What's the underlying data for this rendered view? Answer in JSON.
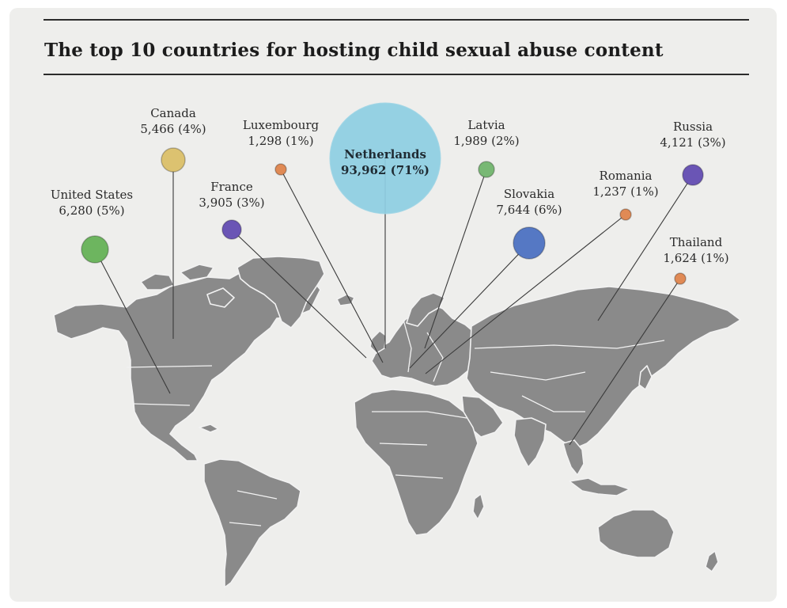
{
  "title": "The top 10 countries for hosting child sexual abuse content",
  "colors": {
    "background": "#eeeeec",
    "land": "#8a8a8a",
    "border": "#f2f2f2",
    "leader": "#3a3a3a"
  },
  "countries": [
    {
      "id": "united-states",
      "name": "United States",
      "value": "6,280 (5%)",
      "count": 6280,
      "percent": 5,
      "color": "#6db55f"
    },
    {
      "id": "canada",
      "name": "Canada",
      "value": "5,466 (4%)",
      "count": 5466,
      "percent": 4,
      "color": "#dcc270"
    },
    {
      "id": "luxembourg",
      "name": "Luxembourg",
      "value": "1,298 (1%)",
      "count": 1298,
      "percent": 1,
      "color": "#e08a55"
    },
    {
      "id": "france",
      "name": "France",
      "value": "3,905 (3%)",
      "count": 3905,
      "percent": 3,
      "color": "#6a55b5"
    },
    {
      "id": "netherlands",
      "name": "Netherlands",
      "value": "93,962 (71%)",
      "count": 93962,
      "percent": 71,
      "color": "#8ecfe3"
    },
    {
      "id": "latvia",
      "name": "Latvia",
      "value": "1,989 (2%)",
      "count": 1989,
      "percent": 2,
      "color": "#78b874"
    },
    {
      "id": "slovakia",
      "name": "Slovakia",
      "value": "7,644 (6%)",
      "count": 7644,
      "percent": 6,
      "color": "#5578c4"
    },
    {
      "id": "romania",
      "name": "Romania",
      "value": "1,237 (1%)",
      "count": 1237,
      "percent": 1,
      "color": "#e08a55"
    },
    {
      "id": "russia",
      "name": "Russia",
      "value": "4,121 (3%)",
      "count": 4121,
      "percent": 3,
      "color": "#6a55b5"
    },
    {
      "id": "thailand",
      "name": "Thailand",
      "value": "1,624 (1%)",
      "count": 1624,
      "percent": 1,
      "color": "#e08a55"
    }
  ]
}
